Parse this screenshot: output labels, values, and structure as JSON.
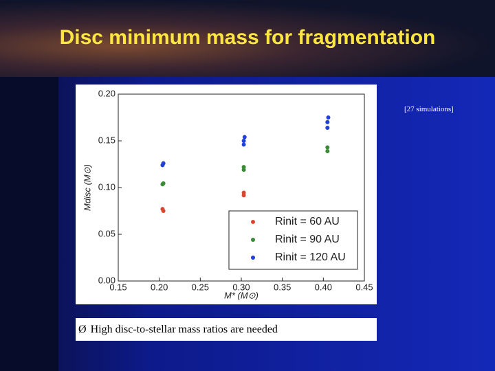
{
  "slide": {
    "title": "Disc minimum mass for fragmentation",
    "annotation": "[27 simulations]",
    "bullet": "High disc-to-stellar mass ratios are needed"
  },
  "chart_data": {
    "type": "scatter",
    "xlabel": "M* (M⊙)",
    "ylabel": "Mdisc (M⊙)",
    "xlim": [
      0.15,
      0.45
    ],
    "ylim": [
      0,
      0.2
    ],
    "xticks": [
      0.15,
      {
        "value": 0.2,
        "label": "0.20"
      },
      0.25,
      {
        "value": 0.3,
        "label": "0.30"
      },
      0.35,
      {
        "value": 0.4,
        "label": "0.40"
      },
      0.45
    ],
    "yticks": [
      {
        "value": 0,
        "label": "0.00"
      },
      0.05,
      {
        "value": 0.1,
        "label": "0.10"
      },
      0.15,
      {
        "value": 0.2,
        "label": "0.20"
      }
    ],
    "legend": "lower right",
    "series": [
      {
        "name": "Rinit = 60 AU",
        "color": "#d9452f",
        "x": [
          0.204,
          0.205,
          0.303,
          0.303
        ],
        "values": [
          0.077,
          0.075,
          0.0945,
          0.0917
        ]
      },
      {
        "name": "Rinit = 90 AU",
        "color": "#3a8a36",
        "x": [
          0.205,
          0.204,
          0.303,
          0.303,
          0.405,
          0.405
        ],
        "values": [
          0.1045,
          0.1035,
          0.122,
          0.119,
          0.143,
          0.139
        ]
      },
      {
        "name": "Rinit = 120 AU",
        "color": "#2040d8",
        "x": [
          0.205,
          0.204,
          0.304,
          0.303,
          0.303,
          0.406,
          0.405,
          0.405
        ],
        "values": [
          0.126,
          0.124,
          0.154,
          0.15,
          0.146,
          0.175,
          0.17,
          0.164
        ]
      }
    ]
  }
}
